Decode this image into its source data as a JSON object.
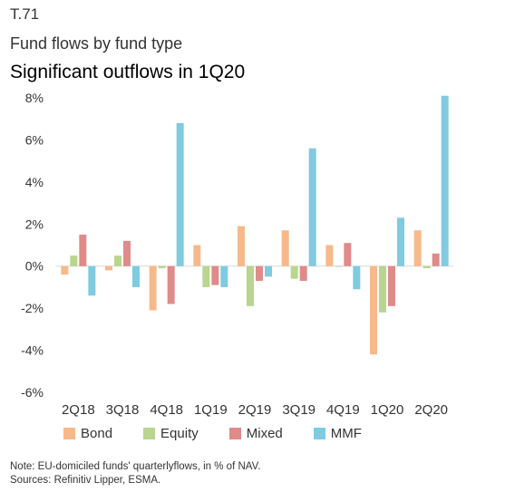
{
  "header": {
    "code": "T.71",
    "subtitle": "Fund flows by fund type",
    "title": "Significant outflows in 1Q20"
  },
  "chart_data": {
    "type": "bar",
    "categories": [
      "2Q18",
      "3Q18",
      "4Q18",
      "1Q19",
      "2Q19",
      "3Q19",
      "4Q19",
      "1Q20",
      "2Q20"
    ],
    "series": [
      {
        "name": "Bond",
        "color": "#f7b98a",
        "values": [
          -0.4,
          -0.2,
          -2.1,
          1.0,
          1.9,
          1.7,
          1.0,
          -4.2,
          1.7
        ]
      },
      {
        "name": "Equity",
        "color": "#b9d58f",
        "values": [
          0.5,
          0.5,
          -0.1,
          -1.0,
          -1.9,
          -0.6,
          0.0,
          -2.2,
          -0.1
        ]
      },
      {
        "name": "Mixed",
        "color": "#e08a8a",
        "values": [
          1.5,
          1.2,
          -1.8,
          -0.9,
          -0.7,
          -0.7,
          1.1,
          -1.9,
          0.6
        ]
      },
      {
        "name": "MMF",
        "color": "#7fcbe0",
        "values": [
          -1.4,
          -1.0,
          6.8,
          -1.0,
          -0.5,
          5.6,
          -1.1,
          2.3,
          8.1
        ]
      }
    ],
    "ylim": [
      -6,
      8
    ],
    "yticks": [
      "8%",
      "6%",
      "4%",
      "2%",
      "0%",
      "-2%",
      "-4%",
      "-6%"
    ],
    "legend_position": "bottom"
  },
  "note": {
    "line1": "Note: EU-domiciled funds' quarterlyflows, in % of NAV.",
    "line2": "Sources: Refinitiv Lipper, ESMA."
  }
}
